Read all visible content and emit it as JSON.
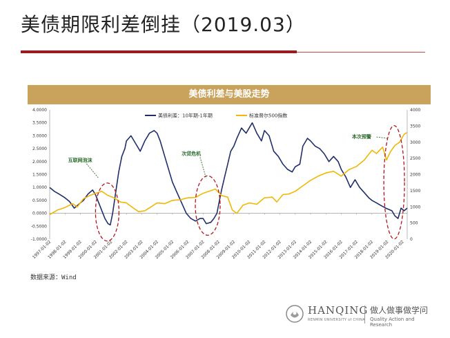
{
  "slide": {
    "title": "美债期限利差倒挂（2019.03）",
    "source": "数据来源：Wind"
  },
  "logo": {
    "name": "HANQING",
    "university": "RENMIN UNIVERSITY of CHINA",
    "slogan_cn": "做人做事做学问",
    "slogan_en": "Quality Action and Research"
  },
  "colors": {
    "accent_red": "#a4161a",
    "header_gold": "#c9a35c",
    "spread_line": "#1f2d6b",
    "sp500_line": "#f2b705",
    "ellipse": "#b3151b",
    "arrow_text": "#2a6b2a"
  },
  "chart_data": {
    "type": "line",
    "title": "美债利差与美股走势",
    "legend": [
      "美债利差：10年期-1年期",
      "标准普尔500指数"
    ],
    "legend_position": "top",
    "x_tick_labels": [
      "1997-01-02",
      "1998-01-02",
      "1999-01-02",
      "2000-01-02",
      "2001-01-02",
      "2002-01-02",
      "2003-01-02",
      "2004-01-02",
      "2005-01-02",
      "2006-01-02",
      "2007-01-02",
      "2008-01-02",
      "2009-01-02",
      "2010-01-02",
      "2011-01-02",
      "2012-01-02",
      "2013-01-02",
      "2014-01-02",
      "2015-01-02",
      "2016-01-02",
      "2017-01-02",
      "2018-01-02",
      "2019-01-02",
      "2020-01-02"
    ],
    "y_left_ticks": [
      "4.0000",
      "3.5000",
      "3.0000",
      "2.5000",
      "2.0000",
      "1.5000",
      "1.0000",
      "0.5000",
      "0.0000",
      "-0.5000",
      "-1.0000"
    ],
    "y_right_ticks": [
      "4000",
      "3500",
      "3000",
      "2500",
      "2000",
      "1500",
      "1000",
      "500",
      "0"
    ],
    "ylim_left": [
      -1.0,
      4.0
    ],
    "ylim_right": [
      0,
      4000
    ],
    "xlim": [
      1997.0,
      2020.3
    ],
    "series": [
      {
        "name": "美债利差：10年期-1年期",
        "axis": "left",
        "x": [
          1997.0,
          1997.3,
          1997.6,
          1998.0,
          1998.3,
          1998.6,
          1998.9,
          1999.2,
          1999.5,
          1999.8,
          2000.0,
          2000.2,
          2000.4,
          2000.6,
          2000.8,
          2000.95,
          2001.1,
          2001.3,
          2001.5,
          2001.7,
          2001.9,
          2002.0,
          2002.3,
          2002.6,
          2002.9,
          2003.2,
          2003.5,
          2003.8,
          2004.0,
          2004.2,
          2004.5,
          2004.8,
          2005.0,
          2005.3,
          2005.6,
          2005.9,
          2006.2,
          2006.5,
          2006.8,
          2007.0,
          2007.2,
          2007.5,
          2007.7,
          2007.9,
          2008.0,
          2008.2,
          2008.4,
          2008.6,
          2008.8,
          2009.0,
          2009.2,
          2009.5,
          2009.8,
          2010.0,
          2010.2,
          2010.5,
          2010.8,
          2011.0,
          2011.3,
          2011.6,
          2011.9,
          2012.2,
          2012.5,
          2012.8,
          2013.0,
          2013.3,
          2013.5,
          2013.8,
          2014.0,
          2014.3,
          2014.6,
          2014.9,
          2015.2,
          2015.5,
          2015.8,
          2016.0,
          2016.3,
          2016.6,
          2016.9,
          2017.2,
          2017.5,
          2017.8,
          2018.0,
          2018.3,
          2018.6,
          2018.9,
          2019.1,
          2019.3,
          2019.5,
          2019.7,
          2019.9,
          2020.1,
          2020.3
        ],
        "values": [
          1.0,
          0.85,
          0.75,
          0.6,
          0.45,
          0.2,
          0.35,
          0.5,
          0.75,
          0.9,
          0.7,
          0.4,
          0.1,
          -0.2,
          -0.4,
          -0.45,
          0.0,
          0.8,
          1.6,
          2.2,
          2.5,
          2.8,
          3.0,
          2.7,
          2.4,
          2.8,
          3.1,
          3.2,
          3.1,
          2.8,
          2.2,
          1.6,
          1.2,
          0.8,
          0.4,
          0.0,
          -0.2,
          -0.3,
          -0.2,
          -0.2,
          -0.4,
          -0.35,
          -0.2,
          0.0,
          0.3,
          0.9,
          1.4,
          1.9,
          2.4,
          2.6,
          2.9,
          3.3,
          3.1,
          3.3,
          3.5,
          3.1,
          2.8,
          3.2,
          3.0,
          2.4,
          2.2,
          1.9,
          1.7,
          1.6,
          1.8,
          1.9,
          2.6,
          2.9,
          2.8,
          2.6,
          2.5,
          2.3,
          2.0,
          2.2,
          2.0,
          1.7,
          1.4,
          1.0,
          1.3,
          1.0,
          0.8,
          0.6,
          0.5,
          0.4,
          0.3,
          0.2,
          0.15,
          0.1,
          -0.1,
          -0.2,
          0.2,
          0.1,
          0.2
        ]
      },
      {
        "name": "标准普尔500指数",
        "axis": "right",
        "x": [
          1997.0,
          1997.5,
          1998.0,
          1998.5,
          1998.8,
          1999.2,
          1999.6,
          2000.0,
          2000.4,
          2000.8,
          2001.2,
          2001.6,
          2002.0,
          2002.4,
          2002.8,
          2003.2,
          2003.6,
          2004.0,
          2004.5,
          2005.0,
          2005.5,
          2006.0,
          2006.5,
          2007.0,
          2007.5,
          2007.8,
          2008.2,
          2008.6,
          2008.9,
          2009.2,
          2009.6,
          2010.0,
          2010.5,
          2011.0,
          2011.5,
          2011.8,
          2012.2,
          2012.6,
          2013.0,
          2013.5,
          2014.0,
          2014.5,
          2015.0,
          2015.5,
          2016.0,
          2016.5,
          2017.0,
          2017.5,
          2018.0,
          2018.3,
          2018.7,
          2018.95,
          2019.2,
          2019.5,
          2019.8,
          2020.1,
          2020.3
        ],
        "values": [
          760,
          900,
          980,
          1100,
          1000,
          1250,
          1350,
          1420,
          1480,
          1350,
          1280,
          1150,
          1120,
          980,
          850,
          880,
          1000,
          1120,
          1100,
          1200,
          1220,
          1280,
          1290,
          1420,
          1500,
          1550,
          1350,
          1300,
          900,
          800,
          1050,
          1120,
          1080,
          1280,
          1300,
          1150,
          1380,
          1400,
          1480,
          1650,
          1820,
          1950,
          2050,
          2100,
          1950,
          2150,
          2250,
          2450,
          2750,
          2650,
          2850,
          2450,
          2700,
          2900,
          3000,
          3250,
          3300
        ]
      }
    ],
    "annotations": [
      {
        "text": "互联网泡沫"
      },
      {
        "text": "次贷危机"
      },
      {
        "text": "本次预警"
      }
    ]
  }
}
